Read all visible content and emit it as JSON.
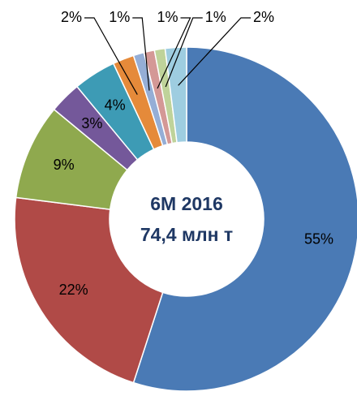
{
  "chart_data": {
    "type": "pie",
    "title": "6M 2016",
    "subtitle": "74,4 млн т",
    "values": [
      55,
      22,
      9,
      3,
      4,
      2,
      1,
      1,
      1,
      2
    ],
    "value_labels": [
      "55%",
      "22%",
      "9%",
      "3%",
      "4%",
      "2%",
      "1%",
      "1%",
      "1%",
      "2%"
    ],
    "colors": [
      "#4a7ab5",
      "#b04a47",
      "#8fa94e",
      "#74589a",
      "#3d9bb5",
      "#e58a3a",
      "#95aed6",
      "#d49896",
      "#bfd39a",
      "#9ecde0"
    ]
  }
}
